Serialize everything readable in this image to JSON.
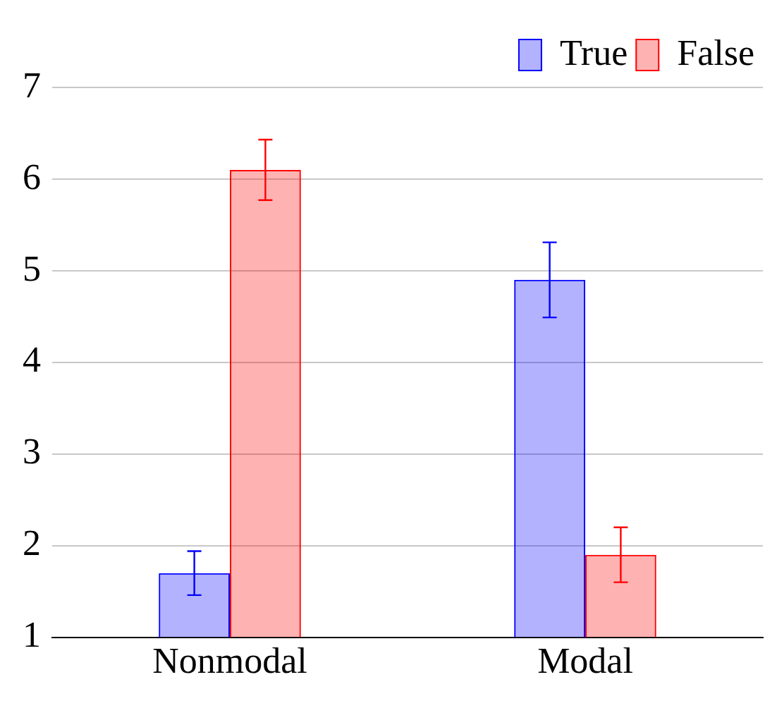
{
  "chart_data": {
    "type": "bar",
    "categories": [
      "Nonmodal",
      "Modal"
    ],
    "series": [
      {
        "name": "True",
        "color": "#0000ff",
        "values": [
          1.7,
          4.9
        ],
        "errors": [
          0.24,
          0.41
        ]
      },
      {
        "name": "False",
        "color": "#ff0000",
        "values": [
          6.1,
          1.9
        ],
        "errors": [
          0.33,
          0.3
        ]
      }
    ],
    "ylim": [
      1,
      7
    ],
    "yticks": [
      1,
      2,
      3,
      4,
      5,
      6,
      7
    ],
    "grid": "y",
    "legend": "top right"
  }
}
